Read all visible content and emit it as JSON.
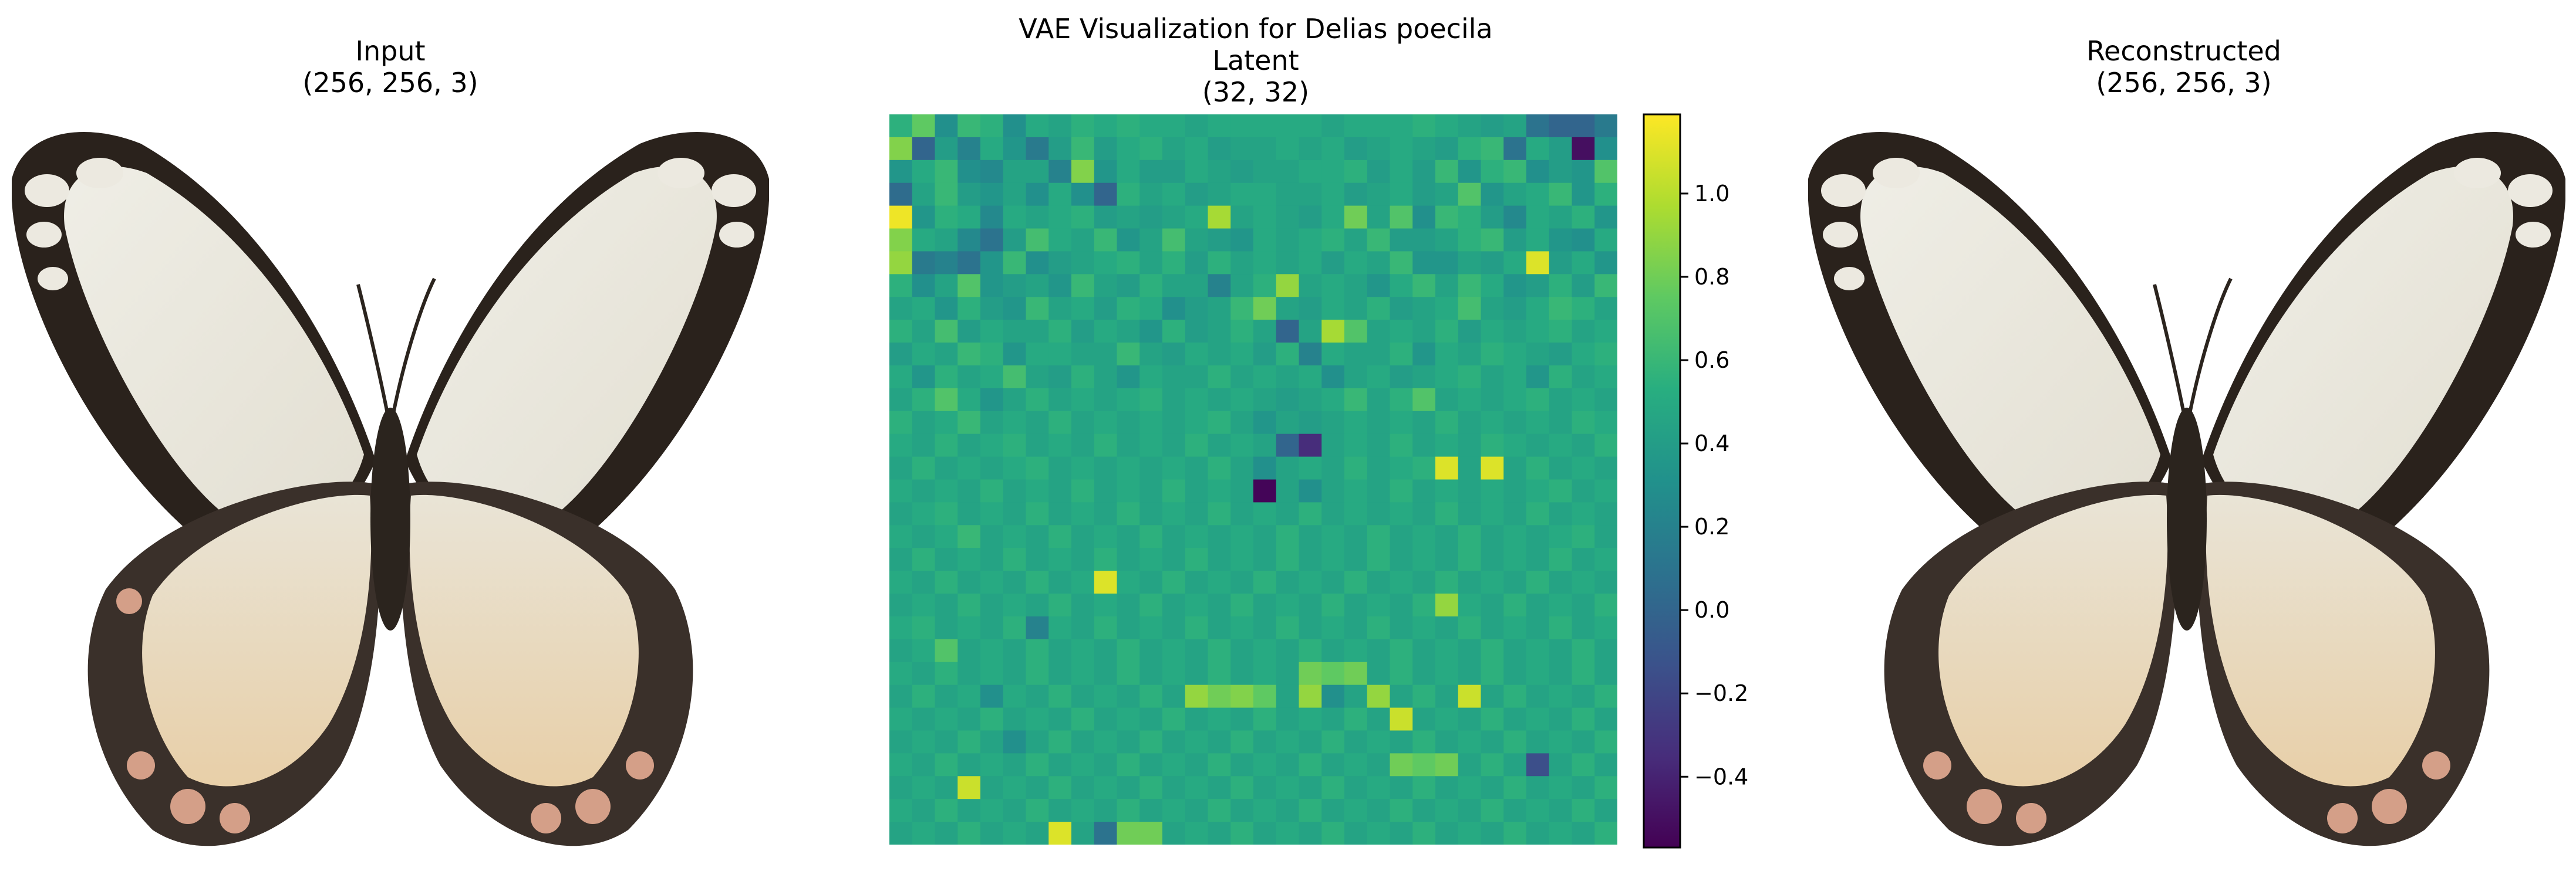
{
  "figure": {
    "input_title": "Input\n(256, 256, 3)",
    "latent_title": "VAE Visualization for Delias poecila\nLatent\n(32, 32)",
    "reconstructed_title": "Reconstructed\n(256, 256, 3)"
  },
  "chart_data": {
    "type": "heatmap",
    "rows": 32,
    "cols": 32,
    "colormap": "viridis",
    "vmin": -0.57,
    "vmax": 1.19,
    "colorbar_ticks": [
      1.0,
      0.8,
      0.6,
      0.4,
      0.2,
      0.0,
      -0.2,
      -0.4
    ],
    "colorbar_tick_labels": [
      "1.0",
      "0.8",
      "0.6",
      "0.4",
      "0.2",
      "0.0",
      "−0.2",
      "−0.4"
    ],
    "values": [
      [
        0.55,
        0.75,
        0.3,
        0.6,
        0.55,
        0.3,
        0.5,
        0.45,
        0.55,
        0.5,
        0.55,
        0.5,
        0.5,
        0.45,
        0.5,
        0.5,
        0.5,
        0.5,
        0.5,
        0.45,
        0.5,
        0.5,
        0.5,
        0.55,
        0.5,
        0.45,
        0.4,
        0.45,
        0.1,
        0.0,
        0.0,
        0.15
      ],
      [
        0.85,
        0.0,
        0.4,
        0.2,
        0.5,
        0.35,
        0.15,
        0.4,
        0.6,
        0.4,
        0.5,
        0.55,
        0.45,
        0.5,
        0.4,
        0.45,
        0.45,
        0.5,
        0.45,
        0.5,
        0.4,
        0.45,
        0.5,
        0.45,
        0.4,
        0.55,
        0.6,
        0.1,
        0.5,
        0.4,
        -0.5,
        0.3
      ],
      [
        0.35,
        0.5,
        0.6,
        0.3,
        0.25,
        0.45,
        0.45,
        0.2,
        0.85,
        0.35,
        0.5,
        0.4,
        0.4,
        0.5,
        0.45,
        0.4,
        0.45,
        0.45,
        0.5,
        0.5,
        0.55,
        0.4,
        0.5,
        0.4,
        0.6,
        0.35,
        0.55,
        0.6,
        0.3,
        0.4,
        0.35,
        0.7
      ],
      [
        0.05,
        0.45,
        0.6,
        0.4,
        0.35,
        0.45,
        0.3,
        0.5,
        0.3,
        0.0,
        0.55,
        0.45,
        0.5,
        0.4,
        0.45,
        0.5,
        0.5,
        0.45,
        0.45,
        0.5,
        0.4,
        0.45,
        0.5,
        0.4,
        0.45,
        0.7,
        0.35,
        0.45,
        0.5,
        0.6,
        0.35,
        0.55
      ],
      [
        1.15,
        0.35,
        0.55,
        0.5,
        0.25,
        0.5,
        0.45,
        0.5,
        0.55,
        0.4,
        0.45,
        0.4,
        0.45,
        0.5,
        0.95,
        0.45,
        0.5,
        0.45,
        0.4,
        0.5,
        0.8,
        0.45,
        0.7,
        0.3,
        0.6,
        0.55,
        0.4,
        0.25,
        0.5,
        0.45,
        0.55,
        0.35
      ],
      [
        0.85,
        0.5,
        0.45,
        0.25,
        0.1,
        0.4,
        0.65,
        0.5,
        0.45,
        0.6,
        0.35,
        0.45,
        0.65,
        0.45,
        0.4,
        0.35,
        0.5,
        0.45,
        0.5,
        0.55,
        0.45,
        0.6,
        0.4,
        0.4,
        0.45,
        0.55,
        0.6,
        0.4,
        0.5,
        0.35,
        0.3,
        0.5
      ],
      [
        0.9,
        0.15,
        0.2,
        0.1,
        0.35,
        0.6,
        0.3,
        0.4,
        0.45,
        0.5,
        0.55,
        0.45,
        0.55,
        0.4,
        0.55,
        0.45,
        0.5,
        0.45,
        0.5,
        0.4,
        0.5,
        0.45,
        0.6,
        0.35,
        0.35,
        0.45,
        0.4,
        0.5,
        1.1,
        0.4,
        0.5,
        0.35
      ],
      [
        0.55,
        0.3,
        0.45,
        0.7,
        0.35,
        0.4,
        0.45,
        0.35,
        0.6,
        0.45,
        0.4,
        0.55,
        0.45,
        0.45,
        0.2,
        0.45,
        0.55,
        0.9,
        0.45,
        0.5,
        0.45,
        0.35,
        0.5,
        0.6,
        0.45,
        0.6,
        0.5,
        0.35,
        0.4,
        0.55,
        0.4,
        0.6
      ],
      [
        0.45,
        0.5,
        0.35,
        0.55,
        0.4,
        0.35,
        0.6,
        0.45,
        0.5,
        0.4,
        0.55,
        0.5,
        0.3,
        0.4,
        0.45,
        0.6,
        0.8,
        0.45,
        0.4,
        0.5,
        0.45,
        0.55,
        0.4,
        0.45,
        0.5,
        0.65,
        0.45,
        0.4,
        0.5,
        0.6,
        0.55,
        0.45
      ],
      [
        0.55,
        0.45,
        0.65,
        0.4,
        0.5,
        0.45,
        0.45,
        0.55,
        0.4,
        0.5,
        0.45,
        0.35,
        0.55,
        0.4,
        0.45,
        0.55,
        0.45,
        0.0,
        0.45,
        0.95,
        0.7,
        0.45,
        0.5,
        0.45,
        0.55,
        0.4,
        0.5,
        0.45,
        0.5,
        0.55,
        0.45,
        0.5
      ],
      [
        0.4,
        0.5,
        0.45,
        0.6,
        0.55,
        0.35,
        0.5,
        0.5,
        0.45,
        0.45,
        0.6,
        0.45,
        0.4,
        0.5,
        0.45,
        0.5,
        0.4,
        0.55,
        0.2,
        0.5,
        0.45,
        0.45,
        0.55,
        0.35,
        0.5,
        0.45,
        0.55,
        0.5,
        0.45,
        0.4,
        0.5,
        0.55
      ],
      [
        0.5,
        0.35,
        0.55,
        0.45,
        0.5,
        0.65,
        0.45,
        0.4,
        0.55,
        0.45,
        0.35,
        0.5,
        0.45,
        0.45,
        0.55,
        0.45,
        0.5,
        0.45,
        0.5,
        0.3,
        0.45,
        0.5,
        0.4,
        0.45,
        0.5,
        0.55,
        0.45,
        0.5,
        0.35,
        0.55,
        0.45,
        0.5
      ],
      [
        0.45,
        0.55,
        0.7,
        0.5,
        0.35,
        0.45,
        0.55,
        0.45,
        0.5,
        0.45,
        0.5,
        0.55,
        0.45,
        0.5,
        0.45,
        0.5,
        0.45,
        0.4,
        0.45,
        0.5,
        0.6,
        0.45,
        0.55,
        0.7,
        0.45,
        0.5,
        0.45,
        0.5,
        0.55,
        0.45,
        0.5,
        0.45
      ],
      [
        0.55,
        0.45,
        0.5,
        0.6,
        0.45,
        0.5,
        0.45,
        0.55,
        0.45,
        0.5,
        0.45,
        0.5,
        0.45,
        0.5,
        0.55,
        0.45,
        0.35,
        0.45,
        0.4,
        0.45,
        0.5,
        0.45,
        0.5,
        0.45,
        0.55,
        0.45,
        0.5,
        0.45,
        0.5,
        0.45,
        0.55,
        0.5
      ],
      [
        0.5,
        0.45,
        0.55,
        0.45,
        0.5,
        0.55,
        0.45,
        0.5,
        0.45,
        0.55,
        0.45,
        0.5,
        0.45,
        0.55,
        0.45,
        0.5,
        0.45,
        0.0,
        -0.35,
        0.45,
        0.5,
        0.45,
        0.55,
        0.45,
        0.5,
        0.45,
        0.55,
        0.5,
        0.45,
        0.5,
        0.45,
        0.55
      ],
      [
        0.45,
        0.55,
        0.45,
        0.5,
        0.45,
        0.5,
        0.55,
        0.45,
        0.5,
        0.45,
        0.5,
        0.45,
        0.5,
        0.45,
        0.55,
        0.45,
        0.3,
        0.45,
        0.5,
        0.45,
        0.55,
        0.45,
        0.5,
        0.55,
        1.1,
        0.45,
        1.1,
        0.45,
        0.55,
        0.45,
        0.5,
        0.45
      ],
      [
        0.5,
        0.45,
        0.5,
        0.45,
        0.55,
        0.45,
        0.5,
        0.45,
        0.55,
        0.45,
        0.5,
        0.45,
        0.55,
        0.45,
        0.5,
        0.45,
        -0.55,
        0.45,
        0.3,
        0.45,
        0.5,
        0.45,
        0.55,
        0.45,
        0.5,
        0.45,
        0.5,
        0.45,
        0.5,
        0.55,
        0.45,
        0.5
      ],
      [
        0.45,
        0.5,
        0.55,
        0.45,
        0.5,
        0.45,
        0.55,
        0.45,
        0.5,
        0.45,
        0.55,
        0.45,
        0.5,
        0.45,
        0.55,
        0.45,
        0.5,
        0.45,
        0.55,
        0.45,
        0.5,
        0.45,
        0.5,
        0.45,
        0.55,
        0.45,
        0.5,
        0.45,
        0.55,
        0.45,
        0.5,
        0.45
      ],
      [
        0.5,
        0.45,
        0.5,
        0.6,
        0.45,
        0.5,
        0.45,
        0.55,
        0.45,
        0.5,
        0.45,
        0.55,
        0.45,
        0.5,
        0.45,
        0.5,
        0.45,
        0.55,
        0.45,
        0.5,
        0.45,
        0.55,
        0.45,
        0.5,
        0.45,
        0.55,
        0.45,
        0.5,
        0.45,
        0.5,
        0.55,
        0.45
      ],
      [
        0.45,
        0.55,
        0.45,
        0.5,
        0.45,
        0.55,
        0.45,
        0.5,
        0.45,
        0.55,
        0.45,
        0.5,
        0.45,
        0.55,
        0.45,
        0.5,
        0.45,
        0.55,
        0.45,
        0.5,
        0.45,
        0.55,
        0.45,
        0.5,
        0.45,
        0.55,
        0.45,
        0.5,
        0.45,
        0.55,
        0.45,
        0.5
      ],
      [
        0.5,
        0.45,
        0.55,
        0.45,
        0.5,
        0.45,
        0.55,
        0.45,
        0.5,
        1.1,
        0.5,
        0.45,
        0.55,
        0.45,
        0.5,
        0.45,
        0.55,
        0.45,
        0.5,
        0.45,
        0.55,
        0.45,
        0.5,
        0.45,
        0.55,
        0.45,
        0.5,
        0.45,
        0.55,
        0.45,
        0.5,
        0.45
      ],
      [
        0.45,
        0.5,
        0.45,
        0.55,
        0.45,
        0.5,
        0.45,
        0.55,
        0.45,
        0.5,
        0.45,
        0.55,
        0.45,
        0.5,
        0.45,
        0.55,
        0.45,
        0.5,
        0.45,
        0.55,
        0.45,
        0.5,
        0.45,
        0.55,
        0.9,
        0.5,
        0.45,
        0.55,
        0.45,
        0.5,
        0.45,
        0.55
      ],
      [
        0.5,
        0.55,
        0.45,
        0.5,
        0.45,
        0.55,
        0.2,
        0.5,
        0.45,
        0.55,
        0.45,
        0.5,
        0.45,
        0.55,
        0.45,
        0.5,
        0.45,
        0.55,
        0.45,
        0.5,
        0.45,
        0.55,
        0.45,
        0.5,
        0.45,
        0.55,
        0.45,
        0.5,
        0.45,
        0.55,
        0.45,
        0.5
      ],
      [
        0.45,
        0.5,
        0.7,
        0.45,
        0.5,
        0.45,
        0.55,
        0.45,
        0.5,
        0.45,
        0.55,
        0.45,
        0.5,
        0.45,
        0.55,
        0.45,
        0.5,
        0.45,
        0.55,
        0.45,
        0.5,
        0.45,
        0.55,
        0.45,
        0.5,
        0.45,
        0.55,
        0.45,
        0.5,
        0.45,
        0.55,
        0.45
      ],
      [
        0.5,
        0.45,
        0.55,
        0.45,
        0.5,
        0.45,
        0.55,
        0.45,
        0.5,
        0.45,
        0.55,
        0.45,
        0.5,
        0.45,
        0.55,
        0.45,
        0.5,
        0.45,
        0.8,
        0.75,
        0.8,
        0.45,
        0.55,
        0.45,
        0.5,
        0.45,
        0.55,
        0.45,
        0.5,
        0.45,
        0.55,
        0.45
      ],
      [
        0.45,
        0.55,
        0.45,
        0.5,
        0.3,
        0.5,
        0.45,
        0.55,
        0.45,
        0.5,
        0.45,
        0.55,
        0.45,
        0.9,
        0.8,
        0.85,
        0.75,
        0.45,
        0.9,
        0.3,
        0.45,
        0.9,
        0.45,
        0.55,
        0.45,
        1.05,
        0.45,
        0.55,
        0.45,
        0.5,
        0.45,
        0.55
      ],
      [
        0.5,
        0.45,
        0.5,
        0.45,
        0.55,
        0.45,
        0.5,
        0.45,
        0.55,
        0.45,
        0.5,
        0.45,
        0.55,
        0.45,
        0.5,
        0.45,
        0.55,
        0.45,
        0.5,
        0.45,
        0.55,
        0.45,
        1.05,
        0.45,
        0.5,
        0.45,
        0.55,
        0.45,
        0.5,
        0.45,
        0.55,
        0.45
      ],
      [
        0.45,
        0.5,
        0.45,
        0.55,
        0.45,
        0.3,
        0.45,
        0.55,
        0.45,
        0.5,
        0.45,
        0.55,
        0.45,
        0.5,
        0.45,
        0.55,
        0.45,
        0.5,
        0.45,
        0.55,
        0.45,
        0.5,
        0.45,
        0.55,
        0.45,
        0.5,
        0.45,
        0.55,
        0.45,
        0.5,
        0.45,
        0.55
      ],
      [
        0.5,
        0.45,
        0.55,
        0.45,
        0.5,
        0.45,
        0.55,
        0.45,
        0.5,
        0.45,
        0.55,
        0.45,
        0.5,
        0.45,
        0.55,
        0.45,
        0.5,
        0.45,
        0.55,
        0.45,
        0.5,
        0.45,
        0.8,
        0.75,
        0.8,
        0.45,
        0.55,
        0.45,
        -0.15,
        0.45,
        0.55,
        0.45
      ],
      [
        0.45,
        0.5,
        0.45,
        1.05,
        0.45,
        0.5,
        0.45,
        0.55,
        0.45,
        0.5,
        0.45,
        0.55,
        0.45,
        0.5,
        0.45,
        0.55,
        0.45,
        0.5,
        0.45,
        0.55,
        0.45,
        0.5,
        0.45,
        0.55,
        0.45,
        0.5,
        0.45,
        0.55,
        0.45,
        0.5,
        0.45,
        0.55
      ],
      [
        0.5,
        0.45,
        0.55,
        0.45,
        0.5,
        0.45,
        0.55,
        0.45,
        0.5,
        0.45,
        0.55,
        0.45,
        0.5,
        0.45,
        0.55,
        0.45,
        0.5,
        0.45,
        0.55,
        0.45,
        0.5,
        0.45,
        0.55,
        0.45,
        0.5,
        0.45,
        0.55,
        0.45,
        0.5,
        0.45,
        0.55,
        0.45
      ],
      [
        0.45,
        0.5,
        0.45,
        0.55,
        0.45,
        0.5,
        0.45,
        1.1,
        0.45,
        0.1,
        0.8,
        0.8,
        0.45,
        0.5,
        0.45,
        0.55,
        0.45,
        0.5,
        0.45,
        0.55,
        0.45,
        0.5,
        0.45,
        0.55,
        0.45,
        0.5,
        0.45,
        0.55,
        0.45,
        0.5,
        0.45,
        0.55
      ]
    ]
  }
}
